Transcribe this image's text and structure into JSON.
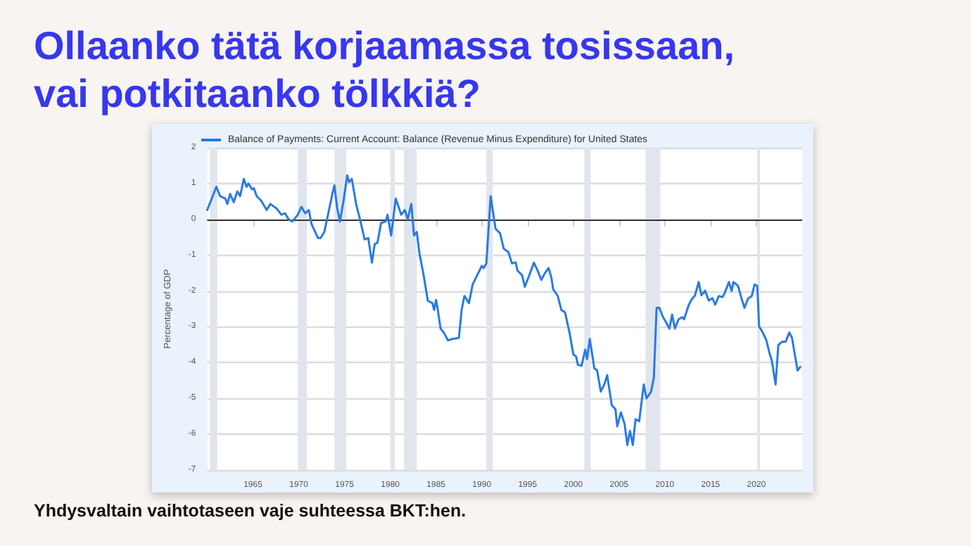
{
  "chart_data": {
    "type": "line",
    "title": "Ollaanko tätä korjaamassa tosissaan, vai potkitaanko tölkkiä?",
    "ylabel": "Percentage of GDP",
    "annotations": [
      "Yhdysvaltain vaihtotaseen vaje suhteessa BKT:hen."
    ],
    "series": [
      {
        "name": "Balance of Payments: Current Account: Balance (Revenue Minus Expenditure) for United States",
        "color": "#2a7ae2",
        "x": [
          1960.0,
          1960.5,
          1961.0,
          1961.4,
          1962.0,
          1962.2,
          1962.5,
          1962.9,
          1963.3,
          1963.6,
          1964.0,
          1964.3,
          1964.5,
          1964.9,
          1965.1,
          1965.4,
          1965.9,
          1966.5,
          1966.9,
          1967.6,
          1968.1,
          1968.5,
          1968.9,
          1969.3,
          1969.9,
          1970.3,
          1970.7,
          1971.1,
          1971.4,
          1972.1,
          1972.4,
          1972.8,
          1973.2,
          1973.7,
          1973.9,
          1974.2,
          1974.5,
          1974.9,
          1975.3,
          1975.5,
          1975.8,
          1976.3,
          1976.7,
          1976.8,
          1977.2,
          1977.6,
          1978.0,
          1978.3,
          1978.6,
          1979.0,
          1979.5,
          1979.7,
          1980.1,
          1980.6,
          1981.2,
          1981.6,
          1981.9,
          1982.3,
          1982.6,
          1982.9,
          1983.2,
          1983.6,
          1984.1,
          1984.6,
          1984.8,
          1985.0,
          1985.2,
          1985.5,
          1985.9,
          1986.3,
          1986.8,
          1987.5,
          1987.8,
          1988.1,
          1988.6,
          1989.0,
          1989.5,
          1990.0,
          1990.2,
          1990.5,
          1990.97,
          1991.5,
          1992.0,
          1992.4,
          1992.9,
          1993.3,
          1993.7,
          1993.9,
          1994.4,
          1994.7,
          1995.1,
          1995.7,
          1996.1,
          1996.5,
          1996.9,
          1997.3,
          1997.6,
          1997.8,
          1998.3,
          1998.7,
          1999.1,
          1999.6,
          2000.0,
          2000.3,
          2000.5,
          2000.9,
          2001.3,
          2001.5,
          2001.8,
          2002.3,
          2002.6,
          2003.0,
          2003.4,
          2003.7,
          2004.2,
          2004.6,
          2004.8,
          2005.2,
          2005.6,
          2005.9,
          2006.2,
          2006.5,
          2006.8,
          2007.2,
          2007.7,
          2008.0,
          2008.5,
          2008.8,
          2009.1,
          2009.4,
          2009.8,
          2010.1,
          2010.5,
          2010.8,
          2011.1,
          2011.5,
          2011.9,
          2012.1,
          2012.6,
          2012.9,
          2013.3,
          2013.7,
          2014.0,
          2014.4,
          2014.8,
          2015.2,
          2015.5,
          2015.9,
          2016.3,
          2016.5,
          2017.0,
          2017.3,
          2017.5,
          2018.0,
          2018.3,
          2018.7,
          2019.1,
          2019.5,
          2019.8,
          2020.1,
          2020.3,
          2020.7,
          2021.1,
          2021.4,
          2021.7,
          2022.1,
          2022.4,
          2022.8,
          2023.2,
          2023.6,
          2023.9,
          2024.2,
          2024.5,
          2024.8
        ],
        "values": [
          0.26,
          0.58,
          0.91,
          0.65,
          0.58,
          0.43,
          0.71,
          0.48,
          0.78,
          0.65,
          1.13,
          0.91,
          1.0,
          0.84,
          0.87,
          0.65,
          0.52,
          0.26,
          0.43,
          0.3,
          0.13,
          0.17,
          0.0,
          -0.06,
          0.13,
          0.35,
          0.17,
          0.26,
          -0.13,
          -0.52,
          -0.52,
          -0.35,
          0.13,
          0.74,
          0.95,
          0.32,
          -0.06,
          0.52,
          1.23,
          1.04,
          1.13,
          0.39,
          0.0,
          0.0,
          -0.56,
          -0.52,
          -1.21,
          -0.69,
          -0.65,
          -0.1,
          -0.06,
          0.13,
          -0.45,
          0.58,
          0.13,
          0.26,
          0.0,
          0.43,
          -0.45,
          -0.35,
          -0.97,
          -1.49,
          -2.27,
          -2.34,
          -2.53,
          -2.25,
          -2.53,
          -3.05,
          -3.18,
          -3.38,
          -3.34,
          -3.31,
          -2.53,
          -2.14,
          -2.34,
          -1.82,
          -1.56,
          -1.3,
          -1.36,
          -1.23,
          0.65,
          -0.26,
          -0.39,
          -0.82,
          -0.91,
          -1.23,
          -1.2,
          -1.43,
          -1.56,
          -1.88,
          -1.62,
          -1.21,
          -1.43,
          -1.69,
          -1.5,
          -1.36,
          -1.62,
          -1.95,
          -2.14,
          -2.53,
          -2.6,
          -3.18,
          -3.77,
          -3.83,
          -4.06,
          -4.09,
          -3.64,
          -3.9,
          -3.34,
          -4.16,
          -4.22,
          -4.81,
          -4.6,
          -4.35,
          -5.19,
          -5.3,
          -5.78,
          -5.39,
          -5.71,
          -6.3,
          -5.91,
          -6.3,
          -5.58,
          -5.64,
          -4.61,
          -5.0,
          -4.81,
          -4.42,
          -2.47,
          -2.47,
          -2.73,
          -2.86,
          -3.05,
          -2.66,
          -3.05,
          -2.79,
          -2.73,
          -2.79,
          -2.4,
          -2.25,
          -2.12,
          -1.75,
          -2.12,
          -1.99,
          -2.27,
          -2.2,
          -2.38,
          -2.14,
          -2.17,
          -2.08,
          -1.75,
          -2.0,
          -1.75,
          -1.86,
          -2.14,
          -2.47,
          -2.21,
          -2.14,
          -1.82,
          -1.86,
          -2.99,
          -3.16,
          -3.38,
          -3.7,
          -3.96,
          -4.61,
          -3.51,
          -3.42,
          -3.42,
          -3.16,
          -3.31,
          -3.77,
          -4.22,
          -4.12
        ]
      }
    ],
    "xlim": [
      1960,
      2025
    ],
    "xticks": [
      1965,
      1970,
      1975,
      1980,
      1985,
      1990,
      1995,
      2000,
      2005,
      2010,
      2015,
      2020
    ],
    "ylim": [
      -7,
      2
    ],
    "yticks": [
      -7,
      -6,
      -5,
      -4,
      -3,
      -2,
      -1,
      0,
      1,
      2
    ],
    "ref_lines": [
      {
        "axis": "y",
        "value": 0,
        "color": "#333333"
      }
    ],
    "bands": [
      {
        "axis": "x",
        "from": 1960.3,
        "to": 1961.1,
        "color": "#e1e6ec"
      },
      {
        "axis": "x",
        "from": 1969.9,
        "to": 1970.9,
        "color": "#e1e6ec"
      },
      {
        "axis": "x",
        "from": 1973.9,
        "to": 1975.2,
        "color": "#e1e6ec"
      },
      {
        "axis": "x",
        "from": 1980.0,
        "to": 1980.5,
        "color": "#e1e6ec"
      },
      {
        "axis": "x",
        "from": 1981.5,
        "to": 1982.9,
        "color": "#e1e6ec"
      },
      {
        "axis": "x",
        "from": 1990.5,
        "to": 1991.2,
        "color": "#e1e6ec"
      },
      {
        "axis": "x",
        "from": 2001.2,
        "to": 2001.9,
        "color": "#e1e6ec"
      },
      {
        "axis": "x",
        "from": 2007.9,
        "to": 2009.5,
        "color": "#e1e6ec"
      },
      {
        "axis": "x",
        "from": 2020.1,
        "to": 2020.4,
        "color": "#e1e6ec"
      }
    ],
    "grid": "y",
    "legend": "top left",
    "marker": "none",
    "line_style": "solid"
  }
}
